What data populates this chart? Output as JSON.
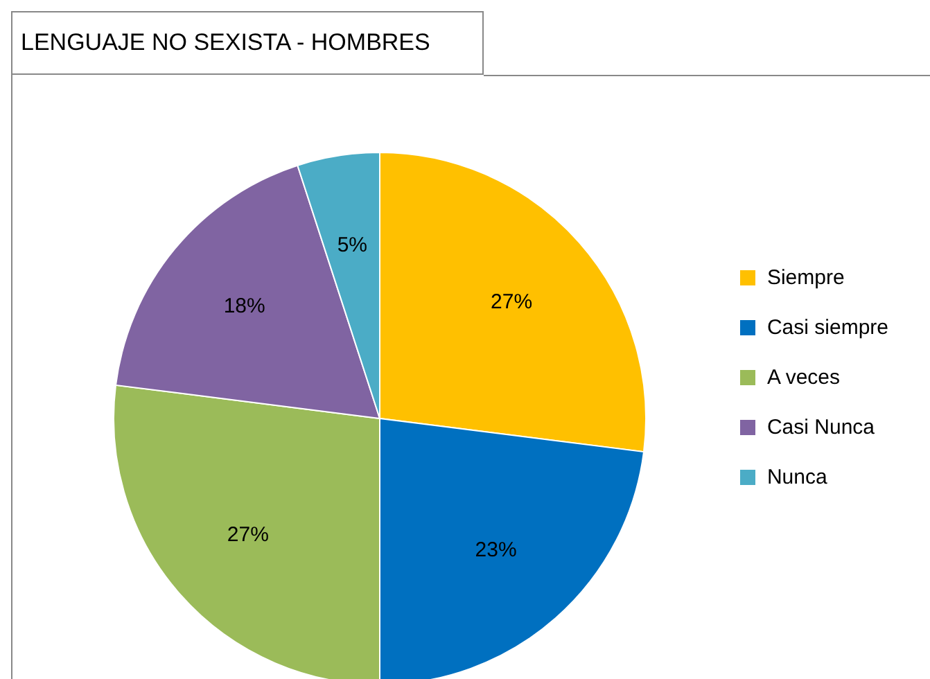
{
  "chart_data": {
    "type": "pie",
    "title": "LENGUAJE NO SEXISTA - HOMBRES",
    "categories": [
      "Siempre",
      "Casi siempre",
      "A veces",
      "Casi Nunca",
      "Nunca"
    ],
    "values": [
      27,
      23,
      27,
      18,
      5
    ],
    "colors": [
      "#ffc000",
      "#0070c0",
      "#9bbb59",
      "#8064a2",
      "#4bacc6"
    ],
    "value_labels": [
      "27%",
      "23%",
      "27%",
      "18%",
      "5%"
    ],
    "legend": "right"
  }
}
